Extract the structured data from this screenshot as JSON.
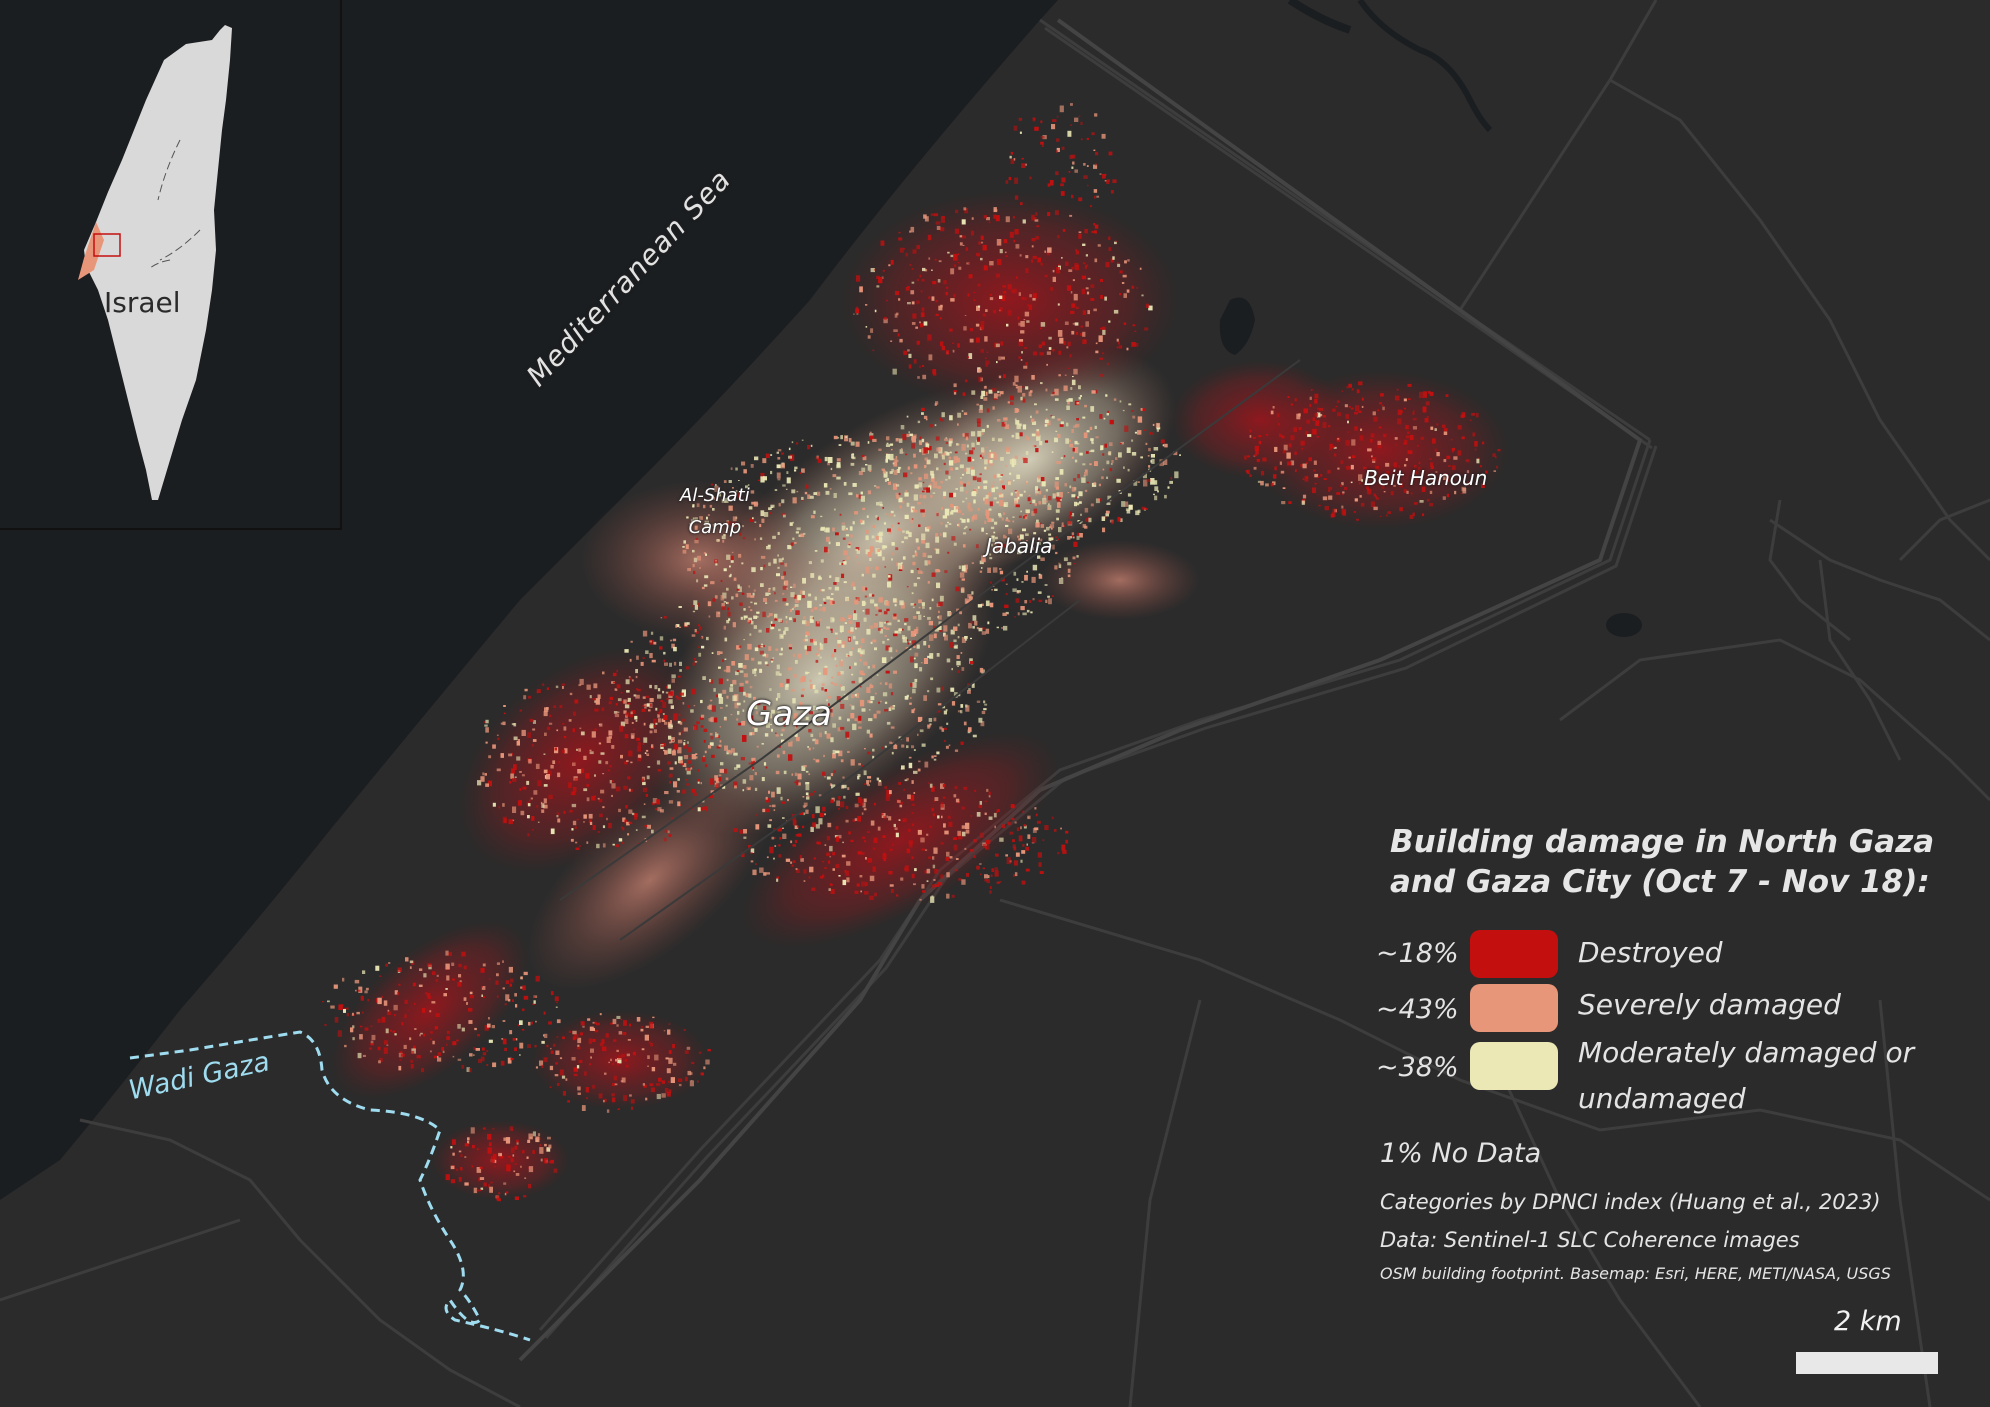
{
  "map": {
    "sea_label": "Mediterranean Sea",
    "wadi_label": "Wadi Gaza",
    "place_labels": {
      "al_shati": [
        "Al-Shati",
        "Camp"
      ],
      "jabalia": "Jabalia",
      "beit_hanoun": "Beit Hanoun",
      "gaza": "Gaza"
    }
  },
  "inset": {
    "country_label": "Israel"
  },
  "legend": {
    "title": "Building damage in North Gaza and Gaza City (Oct 7 - Nov 18):",
    "categories": [
      {
        "percent": "~18%",
        "label": "Destroyed",
        "color": "#c40f0f"
      },
      {
        "percent": "~43%",
        "label": "Severely damaged",
        "color": "#e8967a"
      },
      {
        "percent": "~38%",
        "label": "Moderately damaged or undamaged",
        "color": "#ebe8b6"
      }
    ],
    "no_data": "1% No Data",
    "source_lines": [
      "Categories by DPNCI index (Huang et al., 2023)",
      "Data: Sentinel-1 SLC Coherence images",
      "OSM building footprint. Basemap: Esri, HERE, METI/NASA, USGS"
    ]
  },
  "scale": {
    "label": "2 km"
  },
  "colors": {
    "land": "#2b2b2b",
    "sea": "#1b1e21",
    "destroyed": "#c40f0f",
    "severe": "#e8967a",
    "moderate": "#ebe8b6",
    "wadi": "#9fdcf0"
  }
}
